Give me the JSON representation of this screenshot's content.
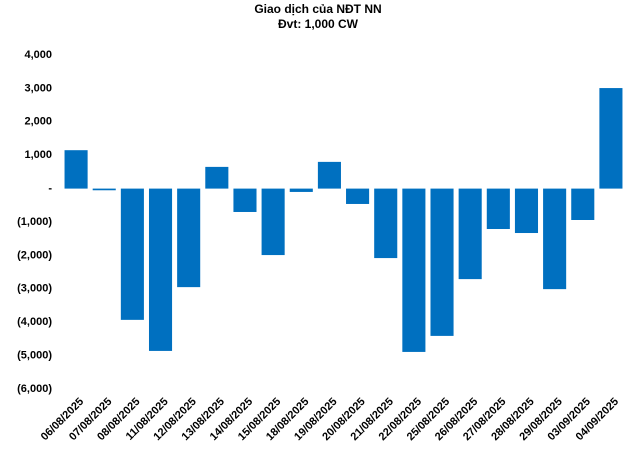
{
  "chart_data": {
    "type": "bar",
    "title": "Giao dịch của NĐT NN",
    "subtitle": "Đvt: 1,000 CW",
    "categories": [
      "06/08/2025",
      "07/08/2025",
      "08/08/2025",
      "11/08/2025",
      "12/08/2025",
      "13/08/2025",
      "14/08/2025",
      "15/08/2025",
      "18/08/2025",
      "19/08/2025",
      "20/08/2025",
      "21/08/2025",
      "22/08/2025",
      "25/08/2025",
      "26/08/2025",
      "27/08/2025",
      "28/08/2025",
      "29/08/2025",
      "03/09/2025",
      "04/09/2025"
    ],
    "values": [
      1150,
      -50,
      -3930,
      -4860,
      -2950,
      650,
      -700,
      -1990,
      -100,
      800,
      -460,
      -2080,
      -4890,
      -4410,
      -2710,
      -1210,
      -1330,
      -3010,
      -940,
      3010
    ],
    "color": "#0070c0",
    "ylim": [
      -6000,
      4000
    ],
    "yticks": [
      {
        "value": -6000,
        "label": "(6,000)"
      },
      {
        "value": -5000,
        "label": "(5,000)"
      },
      {
        "value": -4000,
        "label": "(4,000)"
      },
      {
        "value": -3000,
        "label": "(3,000)"
      },
      {
        "value": -2000,
        "label": "(2,000)"
      },
      {
        "value": -1000,
        "label": "(1,000)"
      },
      {
        "value": 0,
        "label": "-"
      },
      {
        "value": 1000,
        "label": "1,000"
      },
      {
        "value": 2000,
        "label": "2,000"
      },
      {
        "value": 3000,
        "label": "3,000"
      },
      {
        "value": 4000,
        "label": "4,000"
      }
    ],
    "grid": false
  }
}
